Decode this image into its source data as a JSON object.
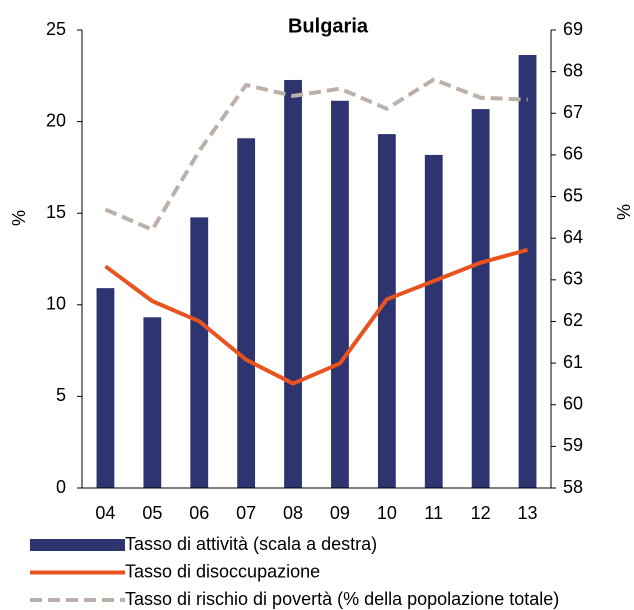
{
  "chart_data": {
    "type": "combo",
    "title": "Bulgaria",
    "categories": [
      "04",
      "05",
      "06",
      "07",
      "08",
      "09",
      "10",
      "11",
      "12",
      "13"
    ],
    "ylabel": "%",
    "y2label": "%",
    "ylim": [
      0,
      25
    ],
    "yticks": [
      0,
      5,
      10,
      15,
      20,
      25
    ],
    "y2lim": [
      58,
      69
    ],
    "y2ticks": [
      58,
      59,
      60,
      61,
      62,
      63,
      64,
      65,
      66,
      67,
      68,
      69
    ],
    "series": [
      {
        "name": "Tasso di attività (scala a destra)",
        "type": "bar",
        "axis": "y2",
        "color": "#2e3470",
        "values": [
          62.8,
          62.1,
          64.5,
          66.4,
          67.8,
          67.3,
          66.5,
          66.0,
          67.1,
          68.4
        ]
      },
      {
        "name": "Tasso di disoccupazione",
        "type": "line",
        "color": "#e8531f",
        "line_style": "solid",
        "values": [
          12.1,
          10.2,
          9.1,
          7.0,
          5.7,
          6.8,
          10.3,
          11.3,
          12.3,
          13.0
        ]
      },
      {
        "name": "Tasso di rischio di povertà (% della popolazione totale)",
        "type": "line",
        "color": "#bcb0a8",
        "line_style": "dashed",
        "values": [
          15.2,
          14.1,
          18.4,
          22.0,
          21.4,
          21.8,
          20.7,
          22.3,
          21.3,
          21.2
        ]
      }
    ]
  }
}
